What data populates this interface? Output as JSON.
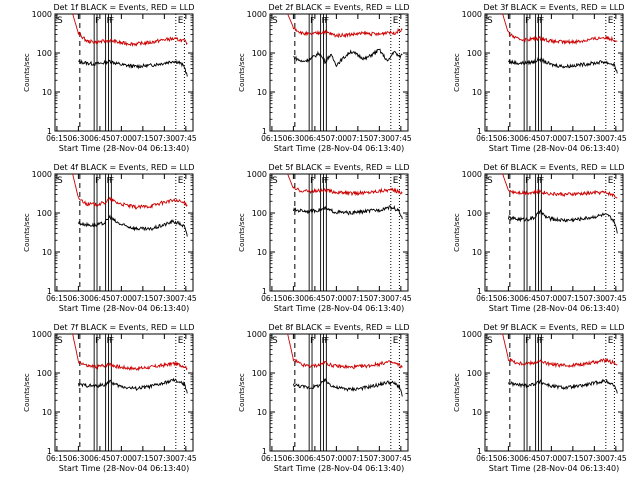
{
  "figure": {
    "ylabel": "Counts/sec",
    "xlabel": "Start Time (28-Nov-04 06:13:40)",
    "panel_title_suffix": " BLACK = Events, RED = LLD",
    "marker_S": "S",
    "marker_F": "F",
    "marker_E": "E",
    "x_tick_labels": [
      "06:15",
      "06:30",
      "06:45",
      "07:00",
      "07:15",
      "07:30",
      "07:45"
    ],
    "y_tick_labels": [
      "1",
      "10",
      "100",
      "1000"
    ],
    "colors": {
      "events": "#000000",
      "lld": "#cc0000",
      "axes": "#000000",
      "background": "#ffffff"
    }
  },
  "chart_data": [
    {
      "panel": "Det 1f",
      "title": "Det 1f BLACK = Events, RED = LLD",
      "type": "line",
      "yscale": "log",
      "ylim": [
        1,
        1000
      ],
      "xlim": [
        "06:13:40",
        "07:50"
      ],
      "x_ticks": [
        "06:15",
        "06:30",
        "06:45",
        "07:00",
        "07:15",
        "07:30",
        "07:45"
      ],
      "x": [
        "06:26",
        "06:30",
        "06:36",
        "06:42",
        "06:48",
        "06:52",
        "06:56",
        "07:00",
        "07:10",
        "07:20",
        "07:30",
        "07:36",
        "07:40",
        "07:44",
        "07:46"
      ],
      "series": [
        {
          "name": "BLACK = Events",
          "values": [
            null,
            60,
            55,
            52,
            56,
            62,
            55,
            50,
            45,
            48,
            55,
            62,
            58,
            45,
            25
          ]
        },
        {
          "name": "RED = LLD",
          "values": [
            1000,
            320,
            200,
            190,
            200,
            210,
            195,
            180,
            170,
            185,
            220,
            230,
            220,
            200,
            180
          ]
        }
      ],
      "vlines": {
        "dashed": [
          "06:31"
        ],
        "solid": [
          "06:41",
          "06:43",
          "06:49",
          "06:51",
          "06:53"
        ],
        "dotted": [
          "07:38",
          "07:44"
        ]
      }
    },
    {
      "panel": "Det 2f",
      "title": "Det 2f BLACK = Events, RED = LLD",
      "type": "line",
      "yscale": "log",
      "ylim": [
        1,
        1000
      ],
      "xlim": [
        "06:13:40",
        "07:50"
      ],
      "x_ticks": [
        "06:15",
        "06:30",
        "06:45",
        "07:00",
        "07:15",
        "07:30",
        "07:45"
      ],
      "x": [
        "06:26",
        "06:30",
        "06:36",
        "06:42",
        "06:48",
        "06:52",
        "06:56",
        "07:00",
        "07:10",
        "07:20",
        "07:30",
        "07:36",
        "07:40",
        "07:44",
        "07:46"
      ],
      "series": [
        {
          "name": "BLACK = Events",
          "values": [
            null,
            80,
            60,
            70,
            100,
            60,
            90,
            50,
            110,
            70,
            120,
            60,
            110,
            80,
            90
          ]
        },
        {
          "name": "RED = LLD",
          "values": [
            1000,
            450,
            320,
            300,
            330,
            350,
            310,
            280,
            300,
            320,
            300,
            350,
            320,
            380,
            400
          ]
        }
      ],
      "vlines": {
        "dashed": [
          "06:31"
        ],
        "solid": [
          "06:41",
          "06:43",
          "06:49",
          "06:51",
          "06:53"
        ],
        "dotted": [
          "07:38",
          "07:44"
        ]
      }
    },
    {
      "panel": "Det 3f",
      "title": "Det 3f BLACK = Events, RED = LLD",
      "type": "line",
      "yscale": "log",
      "ylim": [
        1,
        1000
      ],
      "xlim": [
        "06:13:40",
        "07:50"
      ],
      "x_ticks": [
        "06:15",
        "06:30",
        "06:45",
        "07:00",
        "07:15",
        "07:30",
        "07:45"
      ],
      "x": [
        "06:26",
        "06:30",
        "06:36",
        "06:42",
        "06:48",
        "06:52",
        "06:56",
        "07:00",
        "07:10",
        "07:20",
        "07:30",
        "07:36",
        "07:40",
        "07:44",
        "07:46"
      ],
      "series": [
        {
          "name": "BLACK = Events",
          "values": [
            null,
            60,
            55,
            55,
            60,
            70,
            58,
            50,
            45,
            50,
            55,
            60,
            55,
            50,
            30
          ]
        },
        {
          "name": "RED = LLD",
          "values": [
            1000,
            320,
            230,
            220,
            230,
            240,
            220,
            200,
            190,
            200,
            230,
            250,
            240,
            220,
            200
          ]
        }
      ],
      "vlines": {
        "dashed": [
          "06:31"
        ],
        "solid": [
          "06:41",
          "06:43",
          "06:49",
          "06:51",
          "06:53"
        ],
        "dotted": [
          "07:38",
          "07:44"
        ]
      }
    },
    {
      "panel": "Det 4f",
      "title": "Det 4f BLACK = Events, RED = LLD",
      "type": "line",
      "yscale": "log",
      "ylim": [
        1,
        1000
      ],
      "xlim": [
        "06:13:40",
        "07:50"
      ],
      "x_ticks": [
        "06:15",
        "06:30",
        "06:45",
        "07:00",
        "07:15",
        "07:30",
        "07:45"
      ],
      "x": [
        "06:26",
        "06:30",
        "06:36",
        "06:42",
        "06:48",
        "06:52",
        "06:56",
        "07:00",
        "07:10",
        "07:20",
        "07:30",
        "07:36",
        "07:40",
        "07:44",
        "07:46"
      ],
      "series": [
        {
          "name": "BLACK = Events",
          "values": [
            null,
            55,
            50,
            48,
            55,
            80,
            60,
            50,
            40,
            38,
            50,
            60,
            55,
            45,
            25
          ]
        },
        {
          "name": "RED = LLD",
          "values": [
            1000,
            240,
            170,
            165,
            180,
            230,
            190,
            170,
            140,
            150,
            190,
            210,
            200,
            180,
            160
          ]
        }
      ],
      "vlines": {
        "dashed": [
          "06:31"
        ],
        "solid": [
          "06:41",
          "06:43",
          "06:49",
          "06:51",
          "06:53"
        ],
        "dotted": [
          "07:38",
          "07:44"
        ]
      }
    },
    {
      "panel": "Det 5f",
      "title": "Det 5f BLACK = Events, RED = LLD",
      "type": "line",
      "yscale": "log",
      "ylim": [
        1,
        1000
      ],
      "xlim": [
        "06:13:40",
        "07:50"
      ],
      "x_ticks": [
        "06:15",
        "06:30",
        "06:45",
        "07:00",
        "07:15",
        "07:30",
        "07:45"
      ],
      "x": [
        "06:26",
        "06:30",
        "06:36",
        "06:42",
        "06:48",
        "06:52",
        "06:56",
        "07:00",
        "07:10",
        "07:20",
        "07:30",
        "07:36",
        "07:40",
        "07:44",
        "07:46"
      ],
      "series": [
        {
          "name": "BLACK = Events",
          "values": [
            null,
            120,
            115,
            110,
            120,
            130,
            115,
            105,
            100,
            110,
            120,
            140,
            135,
            110,
            70
          ]
        },
        {
          "name": "RED = LLD",
          "values": [
            1000,
            420,
            370,
            360,
            370,
            380,
            360,
            340,
            320,
            330,
            370,
            390,
            380,
            350,
            320
          ]
        }
      ],
      "vlines": {
        "dashed": [
          "06:31"
        ],
        "solid": [
          "06:41",
          "06:43",
          "06:49",
          "06:51",
          "06:53"
        ],
        "dotted": [
          "07:38",
          "07:44"
        ]
      }
    },
    {
      "panel": "Det 6f",
      "title": "Det 6f BLACK = Events, RED = LLD",
      "type": "line",
      "yscale": "log",
      "ylim": [
        1,
        1000
      ],
      "xlim": [
        "06:13:40",
        "07:50"
      ],
      "x_ticks": [
        "06:15",
        "06:30",
        "06:45",
        "07:00",
        "07:15",
        "07:30",
        "07:45"
      ],
      "x": [
        "06:26",
        "06:30",
        "06:36",
        "06:42",
        "06:48",
        "06:52",
        "06:56",
        "07:00",
        "07:10",
        "07:20",
        "07:30",
        "07:36",
        "07:40",
        "07:44",
        "07:46"
      ],
      "series": [
        {
          "name": "BLACK = Events",
          "values": [
            null,
            75,
            70,
            68,
            75,
            110,
            80,
            70,
            65,
            70,
            80,
            90,
            85,
            60,
            30
          ]
        },
        {
          "name": "RED = LLD",
          "values": [
            1000,
            380,
            340,
            330,
            340,
            360,
            330,
            310,
            300,
            310,
            330,
            340,
            320,
            280,
            240
          ]
        }
      ],
      "vlines": {
        "dashed": [
          "06:31"
        ],
        "solid": [
          "06:41",
          "06:43",
          "06:49",
          "06:51",
          "06:53"
        ],
        "dotted": [
          "07:38",
          "07:44"
        ]
      }
    },
    {
      "panel": "Det 7f",
      "title": "Det 7f BLACK = Events, RED = LLD",
      "type": "line",
      "yscale": "log",
      "ylim": [
        1,
        1000
      ],
      "xlim": [
        "06:13:40",
        "07:50"
      ],
      "x_ticks": [
        "06:15",
        "06:30",
        "06:45",
        "07:00",
        "07:15",
        "07:30",
        "07:45"
      ],
      "x": [
        "06:26",
        "06:30",
        "06:36",
        "06:42",
        "06:48",
        "06:52",
        "06:56",
        "07:00",
        "07:10",
        "07:20",
        "07:30",
        "07:36",
        "07:40",
        "07:44",
        "07:46"
      ],
      "series": [
        {
          "name": "BLACK = Events",
          "values": [
            null,
            50,
            48,
            46,
            50,
            60,
            50,
            45,
            40,
            45,
            55,
            65,
            60,
            50,
            30
          ]
        },
        {
          "name": "RED = LLD",
          "values": [
            1000,
            200,
            150,
            145,
            155,
            170,
            150,
            140,
            130,
            140,
            160,
            175,
            165,
            150,
            130
          ]
        }
      ],
      "vlines": {
        "dashed": [
          "06:31"
        ],
        "solid": [
          "06:41",
          "06:43",
          "06:49",
          "06:51",
          "06:53"
        ],
        "dotted": [
          "07:38",
          "07:44"
        ]
      }
    },
    {
      "panel": "Det 8f",
      "title": "Det 8f BLACK = Events, RED = LLD",
      "type": "line",
      "yscale": "log",
      "ylim": [
        1,
        1000
      ],
      "xlim": [
        "06:13:40",
        "07:50"
      ],
      "x_ticks": [
        "06:15",
        "06:30",
        "06:45",
        "07:00",
        "07:15",
        "07:30",
        "07:45"
      ],
      "x": [
        "06:26",
        "06:30",
        "06:36",
        "06:42",
        "06:48",
        "06:52",
        "06:56",
        "07:00",
        "07:10",
        "07:20",
        "07:30",
        "07:36",
        "07:40",
        "07:44",
        "07:46"
      ],
      "series": [
        {
          "name": "BLACK = Events",
          "values": [
            null,
            50,
            45,
            42,
            48,
            65,
            50,
            42,
            38,
            42,
            50,
            58,
            55,
            45,
            25
          ]
        },
        {
          "name": "RED = LLD",
          "values": [
            1000,
            220,
            160,
            150,
            160,
            190,
            160,
            150,
            140,
            150,
            170,
            190,
            180,
            160,
            140
          ]
        }
      ],
      "vlines": {
        "dashed": [
          "06:31"
        ],
        "solid": [
          "06:41",
          "06:43",
          "06:49",
          "06:51",
          "06:53"
        ],
        "dotted": [
          "07:38",
          "07:44"
        ]
      }
    },
    {
      "panel": "Det 9f",
      "title": "Det 9f BLACK = Events, RED = LLD",
      "type": "line",
      "yscale": "log",
      "ylim": [
        1,
        1000
      ],
      "xlim": [
        "06:13:40",
        "07:50"
      ],
      "x_ticks": [
        "06:15",
        "06:30",
        "06:45",
        "07:00",
        "07:15",
        "07:30",
        "07:45"
      ],
      "x": [
        "06:26",
        "06:30",
        "06:36",
        "06:42",
        "06:48",
        "06:52",
        "06:56",
        "07:00",
        "07:10",
        "07:20",
        "07:30",
        "07:36",
        "07:40",
        "07:44",
        "07:46"
      ],
      "series": [
        {
          "name": "BLACK = Events",
          "values": [
            null,
            55,
            50,
            48,
            52,
            60,
            52,
            46,
            42,
            46,
            55,
            62,
            58,
            48,
            30
          ]
        },
        {
          "name": "RED = LLD",
          "values": [
            1000,
            230,
            180,
            175,
            185,
            200,
            180,
            165,
            155,
            165,
            190,
            210,
            200,
            180,
            160
          ]
        }
      ],
      "vlines": {
        "dashed": [
          "06:31"
        ],
        "solid": [
          "06:41",
          "06:43",
          "06:49",
          "06:51",
          "06:53"
        ],
        "dotted": [
          "07:38",
          "07:44"
        ]
      }
    }
  ]
}
